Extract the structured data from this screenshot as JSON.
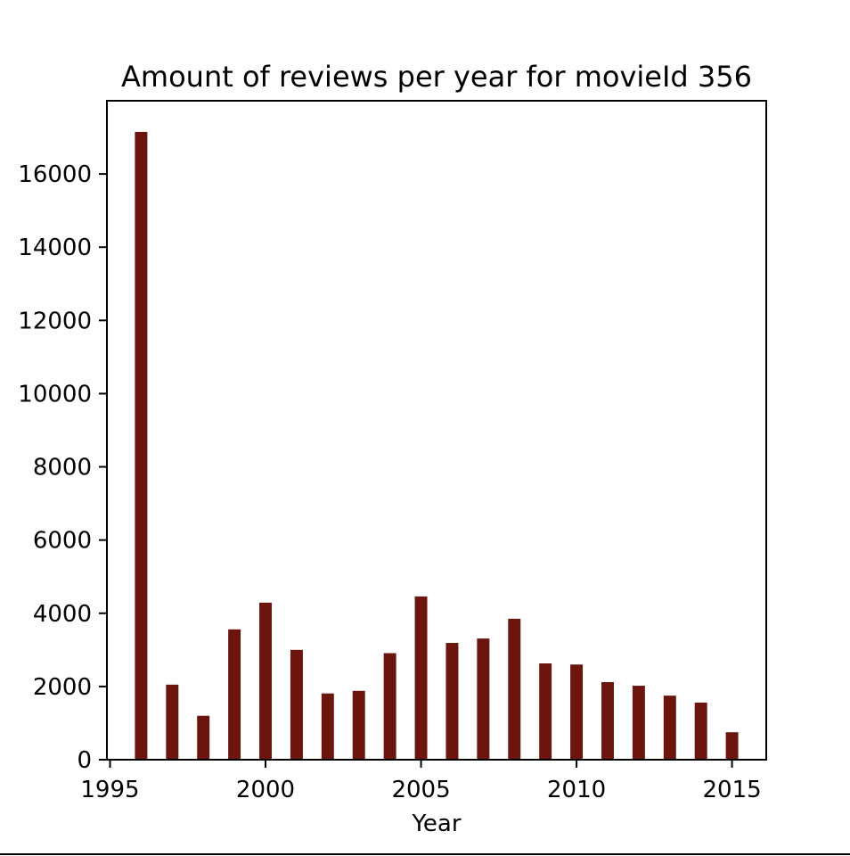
{
  "chart_data": {
    "type": "bar",
    "title": "Amount of reviews per year for movieId 356",
    "xlabel": "Year",
    "ylabel": "",
    "bar_color": "#6b150e",
    "xlim": [
      1994.9,
      2016.1
    ],
    "ylim": [
      0,
      18000
    ],
    "xticks": [
      1995,
      2000,
      2005,
      2010,
      2015
    ],
    "yticks": [
      0,
      2000,
      4000,
      6000,
      8000,
      10000,
      12000,
      14000,
      16000
    ],
    "grid": false,
    "x": [
      1996,
      1997,
      1998,
      1999,
      2000,
      2001,
      2002,
      2003,
      2004,
      2005,
      2006,
      2007,
      2008,
      2009,
      2010,
      2011,
      2012,
      2013,
      2014,
      2015
    ],
    "values": [
      17150,
      2050,
      1200,
      3560,
      4290,
      3000,
      1810,
      1880,
      2910,
      4460,
      3190,
      3310,
      3850,
      2630,
      2600,
      2120,
      2020,
      1750,
      1560,
      750
    ],
    "bar_width_years": 0.4
  }
}
